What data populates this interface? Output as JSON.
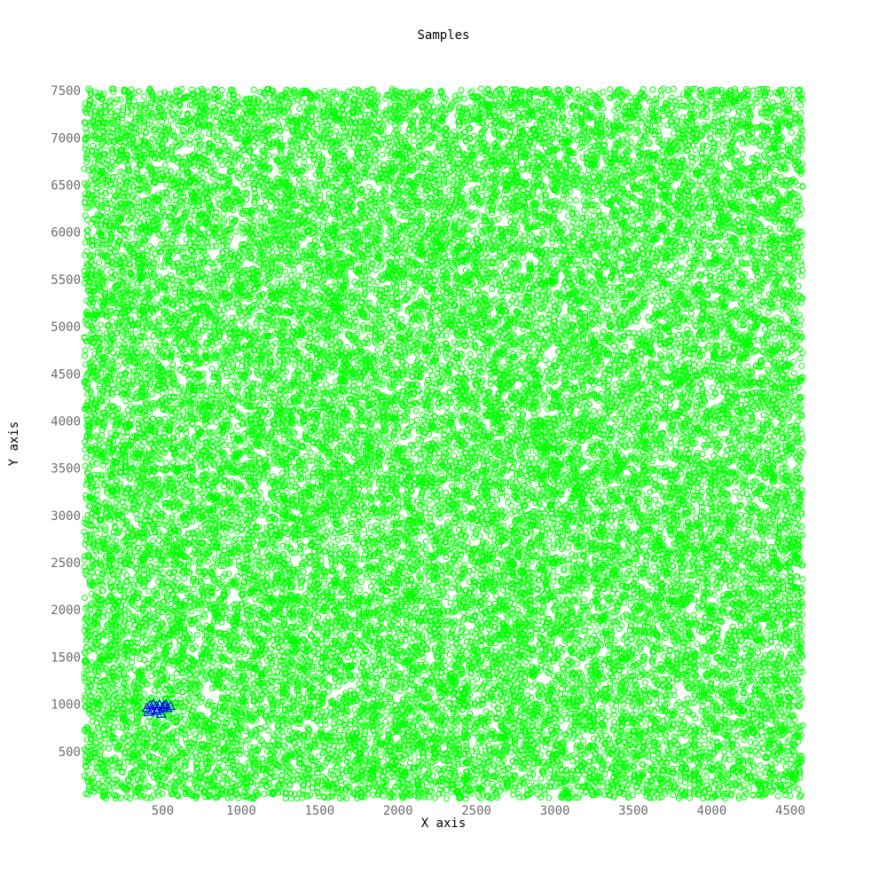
{
  "chart_data": {
    "type": "scatter",
    "title": "Samples",
    "xlabel": "X axis",
    "ylabel": "Y axis",
    "xlim": [
      0,
      4580
    ],
    "ylim": [
      0,
      7520
    ],
    "xticks": [
      500,
      1000,
      1500,
      2000,
      2500,
      3000,
      3500,
      4000,
      4500
    ],
    "yticks": [
      500,
      1000,
      1500,
      2000,
      2500,
      3000,
      3500,
      4000,
      4500,
      5000,
      5500,
      6000,
      6500,
      7000,
      7500
    ],
    "grid": false,
    "legend": "none",
    "series": [
      {
        "marker": "circle",
        "color": "#00ff00",
        "distribution": "uniform",
        "x_range": [
          0,
          4580
        ],
        "y_range": [
          0,
          7520
        ],
        "approx_count": 30000
      },
      {
        "marker": "triangle",
        "color": "#0000ff",
        "points": [
          [
            400,
            960
          ],
          [
            420,
            990
          ],
          [
            440,
            1000
          ],
          [
            460,
            980
          ],
          [
            470,
            950
          ],
          [
            480,
            1000
          ],
          [
            500,
            970
          ],
          [
            510,
            990
          ],
          [
            530,
            960
          ],
          [
            550,
            980
          ],
          [
            430,
            940
          ],
          [
            490,
            900
          ],
          [
            460,
            930
          ],
          [
            520,
            1000
          ],
          [
            410,
            920
          ]
        ]
      }
    ]
  }
}
